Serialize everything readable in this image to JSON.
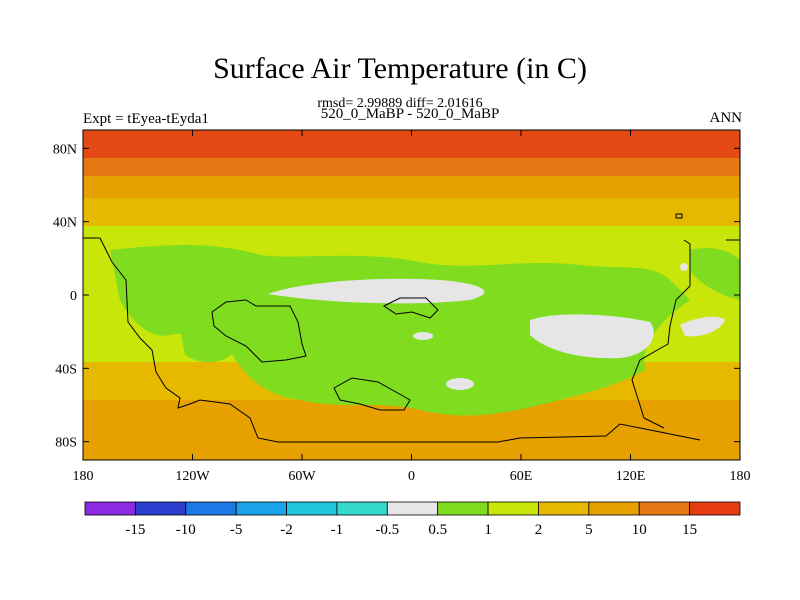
{
  "chart_data": {
    "type": "heatmap",
    "title": "Surface Air Temperature (in C)",
    "subtitle": "rmsd= 2.99889 diff= 2.01616",
    "left_label": "Expt = tEyea-tEyda1",
    "center_label": "520_0_MaBP - 520_0_MaBP",
    "right_label": "ANN",
    "x_ticks": [
      "180",
      "120W",
      "60W",
      "0",
      "60E",
      "120E",
      "180"
    ],
    "y_ticks": [
      "80N",
      "40N",
      "0",
      "40S",
      "80S"
    ],
    "xlim": [
      -180,
      180
    ],
    "ylim": [
      -90,
      90
    ],
    "colorbar": {
      "labels": [
        "-15",
        "-10",
        "-5",
        "-2",
        "-1",
        "-0.5",
        "0.5",
        "1",
        "2",
        "5",
        "10",
        "15"
      ],
      "colors": [
        "#8a2be2",
        "#2c3fcf",
        "#1e78e6",
        "#1aa3e8",
        "#22c4dd",
        "#33d9cc",
        "#e6e6e6",
        "#7fdc1e",
        "#c8e60a",
        "#e6b800",
        "#e6a000",
        "#e67814",
        "#e63c14"
      ]
    }
  }
}
